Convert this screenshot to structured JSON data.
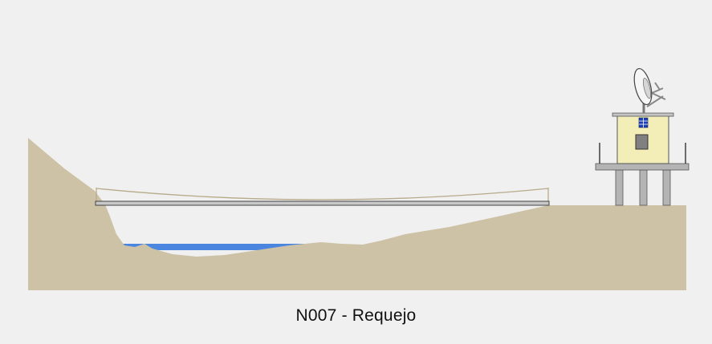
{
  "station": {
    "caption": "N007 - Requejo"
  },
  "colors": {
    "background": "#f0f0f0",
    "terrain": "#cdc2a6",
    "water": "#4a86e0",
    "bridge_deck": "#c8c8c8",
    "bridge_cable": "#b8aa8a",
    "hut_wall": "#f3eeb8",
    "platform": "#b4b4b4",
    "window": "#1f3fb8",
    "door": "#808080"
  },
  "icons": {
    "antenna": "satellite-dish-icon"
  }
}
